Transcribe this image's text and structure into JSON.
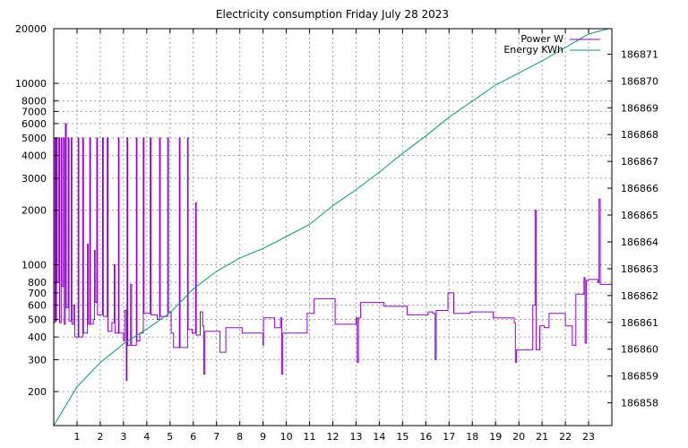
{
  "chart_data": {
    "type": "line",
    "title": "Electricity consumption Friday July 28 2023",
    "x": {
      "ticks": [
        1,
        2,
        3,
        4,
        5,
        6,
        7,
        8,
        9,
        10,
        11,
        12,
        13,
        14,
        15,
        16,
        17,
        18,
        19,
        20,
        21,
        22,
        23
      ],
      "range": [
        0,
        24
      ]
    },
    "y_left": {
      "scale": "log",
      "range": [
        130,
        20000
      ],
      "ticks": [
        200,
        300,
        400,
        500,
        600,
        700,
        800,
        1000,
        2000,
        3000,
        4000,
        5000,
        6000,
        7000,
        8000,
        10000,
        20000
      ]
    },
    "y_right": {
      "scale": "linear",
      "range": [
        186857.15,
        186871.95
      ],
      "ticks": [
        186858,
        186859,
        186860,
        186861,
        186862,
        186863,
        186864,
        186865,
        186866,
        186867,
        186868,
        186869,
        186870,
        186871
      ]
    },
    "legend_position": "top-right",
    "grid": true,
    "series": [
      {
        "name": "Power W",
        "axis": "left",
        "color": "#9400d3",
        "step": true,
        "points": [
          [
            0.0,
            480
          ],
          [
            0.05,
            5000
          ],
          [
            0.08,
            490
          ],
          [
            0.12,
            5000
          ],
          [
            0.15,
            800
          ],
          [
            0.22,
            5000
          ],
          [
            0.25,
            480
          ],
          [
            0.32,
            5000
          ],
          [
            0.35,
            760
          ],
          [
            0.42,
            5000
          ],
          [
            0.45,
            470
          ],
          [
            0.5,
            6000
          ],
          [
            0.54,
            580
          ],
          [
            0.62,
            5000
          ],
          [
            0.66,
            490
          ],
          [
            0.75,
            5000
          ],
          [
            0.78,
            470
          ],
          [
            0.85,
            600
          ],
          [
            0.9,
            400
          ],
          [
            1.05,
            5000
          ],
          [
            1.08,
            400
          ],
          [
            1.25,
            5000
          ],
          [
            1.28,
            420
          ],
          [
            1.45,
            1300
          ],
          [
            1.48,
            470
          ],
          [
            1.55,
            5000
          ],
          [
            1.58,
            470
          ],
          [
            1.7,
            500
          ],
          [
            1.75,
            1200
          ],
          [
            1.78,
            620
          ],
          [
            1.85,
            5000
          ],
          [
            1.88,
            530
          ],
          [
            2.1,
            5000
          ],
          [
            2.13,
            520
          ],
          [
            2.3,
            5000
          ],
          [
            2.33,
            430
          ],
          [
            2.5,
            480
          ],
          [
            2.6,
            1000
          ],
          [
            2.63,
            420
          ],
          [
            2.78,
            5000
          ],
          [
            2.81,
            420
          ],
          [
            3.0,
            380
          ],
          [
            3.05,
            560
          ],
          [
            3.12,
            230
          ],
          [
            3.15,
            5000
          ],
          [
            3.18,
            360
          ],
          [
            3.3,
            780
          ],
          [
            3.35,
            360
          ],
          [
            3.55,
            5000
          ],
          [
            3.58,
            380
          ],
          [
            3.7,
            420
          ],
          [
            3.85,
            5000
          ],
          [
            3.88,
            540
          ],
          [
            4.15,
            5000
          ],
          [
            4.18,
            530
          ],
          [
            4.45,
            500
          ],
          [
            4.55,
            5000
          ],
          [
            4.58,
            520
          ],
          [
            4.9,
            5000
          ],
          [
            4.93,
            550
          ],
          [
            5.05,
            420
          ],
          [
            5.15,
            350
          ],
          [
            5.4,
            5000
          ],
          [
            5.43,
            350
          ],
          [
            5.75,
            5000
          ],
          [
            5.78,
            440
          ],
          [
            5.95,
            420
          ],
          [
            6.1,
            2200
          ],
          [
            6.13,
            410
          ],
          [
            6.3,
            550
          ],
          [
            6.4,
            460
          ],
          [
            6.45,
            250
          ],
          [
            6.5,
            430
          ],
          [
            7.0,
            430
          ],
          [
            7.15,
            330
          ],
          [
            7.4,
            450
          ],
          [
            8.1,
            420
          ],
          [
            8.9,
            420
          ],
          [
            9.0,
            360
          ],
          [
            9.02,
            510
          ],
          [
            9.5,
            450
          ],
          [
            9.75,
            510
          ],
          [
            9.8,
            250
          ],
          [
            9.85,
            420
          ],
          [
            10.9,
            540
          ],
          [
            11.2,
            650
          ],
          [
            12.1,
            470
          ],
          [
            12.95,
            470
          ],
          [
            13.0,
            510
          ],
          [
            13.05,
            290
          ],
          [
            13.1,
            510
          ],
          [
            13.2,
            620
          ],
          [
            14.2,
            590
          ],
          [
            15.2,
            530
          ],
          [
            16.1,
            550
          ],
          [
            16.3,
            540
          ],
          [
            16.4,
            300
          ],
          [
            16.45,
            560
          ],
          [
            16.95,
            700
          ],
          [
            17.2,
            540
          ],
          [
            17.9,
            550
          ],
          [
            18.9,
            510
          ],
          [
            19.8,
            480
          ],
          [
            19.85,
            290
          ],
          [
            19.9,
            340
          ],
          [
            20.6,
            600
          ],
          [
            20.7,
            2000
          ],
          [
            20.75,
            340
          ],
          [
            20.9,
            460
          ],
          [
            21.1,
            450
          ],
          [
            21.3,
            540
          ],
          [
            22.0,
            460
          ],
          [
            22.3,
            360
          ],
          [
            22.45,
            690
          ],
          [
            22.8,
            850
          ],
          [
            22.85,
            370
          ],
          [
            22.9,
            820
          ],
          [
            23.0,
            830
          ],
          [
            23.4,
            800
          ],
          [
            23.45,
            2300
          ],
          [
            23.5,
            780
          ],
          [
            24.0,
            780
          ]
        ]
      },
      {
        "name": "Energy KWh",
        "axis": "right",
        "color": "#009e73",
        "step": false,
        "points": [
          [
            0.0,
            186857.15
          ],
          [
            1.0,
            186858.6
          ],
          [
            2.0,
            186859.5
          ],
          [
            3.0,
            186860.2
          ],
          [
            4.0,
            186860.75
          ],
          [
            5.0,
            186861.35
          ],
          [
            6.0,
            186862.25
          ],
          [
            7.0,
            186862.9
          ],
          [
            8.0,
            186863.4
          ],
          [
            9.0,
            186863.75
          ],
          [
            10.0,
            186864.2
          ],
          [
            11.0,
            186864.65
          ],
          [
            12.0,
            186865.35
          ],
          [
            13.0,
            186865.95
          ],
          [
            14.0,
            186866.6
          ],
          [
            15.0,
            186867.3
          ],
          [
            16.0,
            186867.95
          ],
          [
            17.0,
            186868.65
          ],
          [
            18.0,
            186869.25
          ],
          [
            19.0,
            186869.85
          ],
          [
            20.0,
            186870.3
          ],
          [
            21.0,
            186870.75
          ],
          [
            22.0,
            186871.25
          ],
          [
            23.0,
            186871.75
          ],
          [
            23.85,
            186871.95
          ]
        ]
      }
    ]
  }
}
